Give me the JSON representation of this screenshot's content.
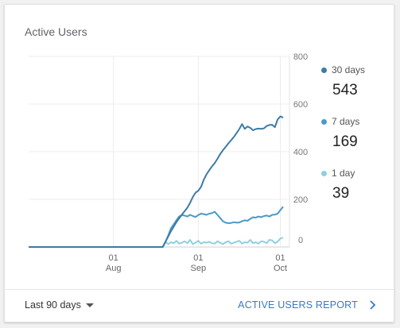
{
  "card": {
    "title": "Active Users"
  },
  "legend": [
    {
      "label": "30 days",
      "value": "543",
      "color": "#3c7ba7"
    },
    {
      "label": "7 days",
      "value": "169",
      "color": "#4a9ac7"
    },
    {
      "label": "1 day",
      "value": "39",
      "color": "#8fd0e0"
    }
  ],
  "footer": {
    "range_label": "Last 90 days",
    "report_link": "ACTIVE USERS REPORT"
  },
  "chart_data": {
    "type": "line",
    "y_ticks": [
      0,
      200,
      400,
      600,
      800
    ],
    "ylim": [
      0,
      800
    ],
    "x_ticks": [
      {
        "day": 0,
        "label": "01",
        "sublabel": "Aug"
      },
      {
        "day": 31,
        "label": "01",
        "sublabel": "Sep"
      },
      {
        "day": 61,
        "label": "01",
        "sublabel": "Oct"
      }
    ],
    "x_range_days": [
      -31,
      62
    ],
    "grid": true,
    "series": [
      {
        "name": "30 days",
        "color": "#3c7ba7",
        "x": [
          -31,
          -20,
          -10,
          0,
          10,
          18,
          19,
          20,
          21,
          22,
          23,
          24,
          25,
          26,
          27,
          28,
          29,
          30,
          31,
          32,
          33,
          34,
          35,
          36,
          37,
          38,
          39,
          40,
          41,
          42,
          43,
          44,
          45,
          46,
          47,
          48,
          49,
          50,
          51,
          52,
          53,
          54,
          55,
          56,
          57,
          58,
          59,
          60,
          61,
          62
        ],
        "y": [
          0,
          0,
          0,
          0,
          0,
          0,
          22,
          44,
          66,
          85,
          104,
          120,
          136,
          150,
          165,
          185,
          210,
          228,
          236,
          252,
          282,
          305,
          322,
          338,
          352,
          370,
          390,
          406,
          420,
          435,
          448,
          462,
          478,
          495,
          516,
          496,
          506,
          500,
          490,
          495,
          497,
          496,
          498,
          508,
          512,
          513,
          503,
          535,
          548,
          543
        ]
      },
      {
        "name": "7 days",
        "color": "#4a9ac7",
        "x": [
          -31,
          -20,
          -10,
          0,
          10,
          18,
          19,
          20,
          21,
          22,
          23,
          24,
          25,
          26,
          27,
          28,
          29,
          30,
          31,
          32,
          33,
          34,
          35,
          36,
          37,
          38,
          39,
          40,
          41,
          42,
          43,
          44,
          45,
          46,
          47,
          48,
          49,
          50,
          51,
          52,
          53,
          54,
          55,
          56,
          57,
          58,
          59,
          60,
          61,
          62
        ],
        "y": [
          0,
          0,
          0,
          0,
          0,
          0,
          20,
          48,
          78,
          95,
          112,
          128,
          134,
          132,
          128,
          135,
          130,
          126,
          134,
          140,
          138,
          135,
          140,
          142,
          148,
          135,
          122,
          108,
          102,
          100,
          101,
          104,
          102,
          103,
          108,
          112,
          110,
          118,
          125,
          123,
          128,
          125,
          130,
          132,
          128,
          135,
          136,
          140,
          155,
          169
        ]
      },
      {
        "name": "1 day",
        "color": "#8fd0e0",
        "x": [
          -31,
          -20,
          -10,
          0,
          10,
          18,
          19,
          20,
          21,
          22,
          23,
          24,
          25,
          26,
          27,
          28,
          29,
          30,
          31,
          32,
          33,
          34,
          35,
          36,
          37,
          38,
          39,
          40,
          41,
          42,
          43,
          44,
          45,
          46,
          47,
          48,
          49,
          50,
          51,
          52,
          53,
          54,
          55,
          56,
          57,
          58,
          59,
          60,
          61,
          62
        ],
        "y": [
          0,
          0,
          0,
          0,
          0,
          0,
          22,
          12,
          20,
          16,
          26,
          14,
          18,
          24,
          16,
          30,
          12,
          18,
          26,
          14,
          20,
          18,
          22,
          16,
          14,
          24,
          18,
          12,
          20,
          24,
          14,
          18,
          22,
          26,
          14,
          20,
          18,
          30,
          16,
          20,
          14,
          24,
          22,
          16,
          30,
          28,
          16,
          22,
          36,
          39
        ]
      }
    ]
  }
}
